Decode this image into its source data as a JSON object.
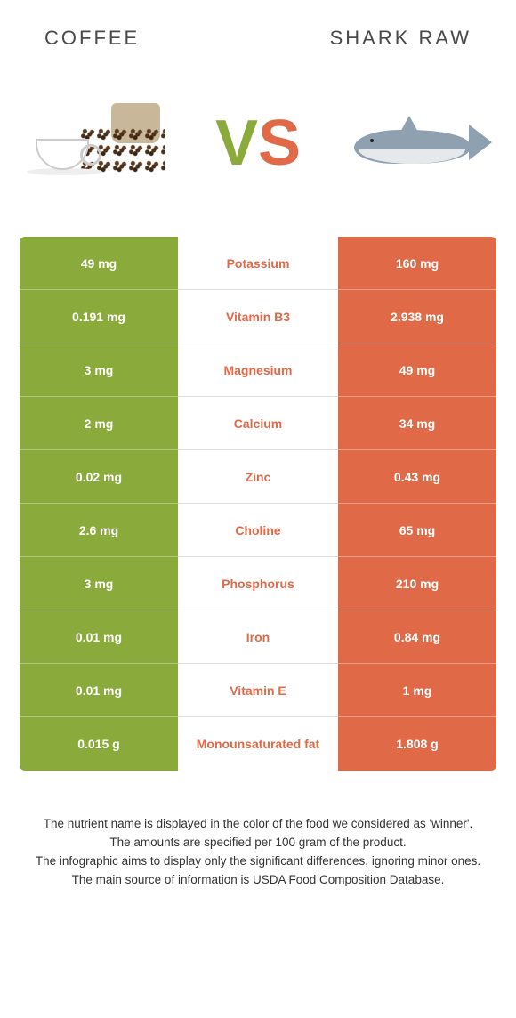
{
  "header": {
    "left_title": "COFFEE",
    "right_title": "SHARK RAW"
  },
  "vs": {
    "v": "V",
    "s": "S"
  },
  "colors": {
    "left_bg": "#8aab3b",
    "right_bg": "#e06a48",
    "nutrient_text": "#e06a48",
    "value_text": "#ffffff"
  },
  "rows": [
    {
      "left": "49 mg",
      "nutrient": "Potassium",
      "right": "160 mg"
    },
    {
      "left": "0.191 mg",
      "nutrient": "Vitamin B3",
      "right": "2.938 mg"
    },
    {
      "left": "3 mg",
      "nutrient": "Magnesium",
      "right": "49 mg"
    },
    {
      "left": "2 mg",
      "nutrient": "Calcium",
      "right": "34 mg"
    },
    {
      "left": "0.02 mg",
      "nutrient": "Zinc",
      "right": "0.43 mg"
    },
    {
      "left": "2.6 mg",
      "nutrient": "Choline",
      "right": "65 mg"
    },
    {
      "left": "3 mg",
      "nutrient": "Phosphorus",
      "right": "210 mg"
    },
    {
      "left": "0.01 mg",
      "nutrient": "Iron",
      "right": "0.84 mg"
    },
    {
      "left": "0.01 mg",
      "nutrient": "Vitamin E",
      "right": "1 mg"
    },
    {
      "left": "0.015 g",
      "nutrient": "Monounsaturated fat",
      "right": "1.808 g"
    }
  ],
  "footer": {
    "line1": "The nutrient name is displayed in the color of the food we considered as 'winner'.",
    "line2": "The amounts are specified per 100 gram of the product.",
    "line3": "The infographic aims to display only the significant differences, ignoring minor ones.",
    "line4": "The main source of information is USDA Food Composition Database."
  }
}
